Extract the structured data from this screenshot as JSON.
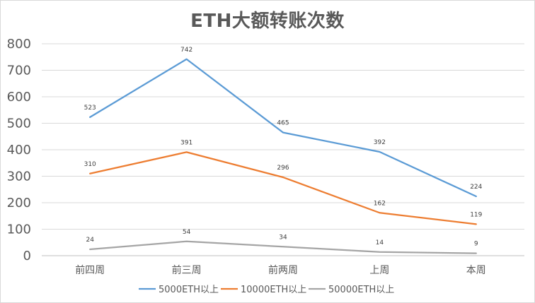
{
  "chart_data": {
    "type": "line",
    "title": "ETH大额转账次数",
    "categories": [
      "前四周",
      "前三周",
      "前两周",
      "上周",
      "本周"
    ],
    "series": [
      {
        "name": "5000ETH以上",
        "color": "#5b9bd5",
        "values": [
          523,
          742,
          465,
          392,
          224
        ]
      },
      {
        "name": "10000ETH以上",
        "color": "#ed7d31",
        "values": [
          310,
          391,
          296,
          162,
          119
        ]
      },
      {
        "name": "50000ETH以上",
        "color": "#a5a5a5",
        "values": [
          24,
          54,
          34,
          14,
          9
        ]
      }
    ],
    "ylim": [
      0,
      800
    ],
    "yticks": [
      0,
      100,
      200,
      300,
      400,
      500,
      600,
      700,
      800
    ],
    "grid": true,
    "legend": "bottom",
    "xlabel": "",
    "ylabel": ""
  }
}
